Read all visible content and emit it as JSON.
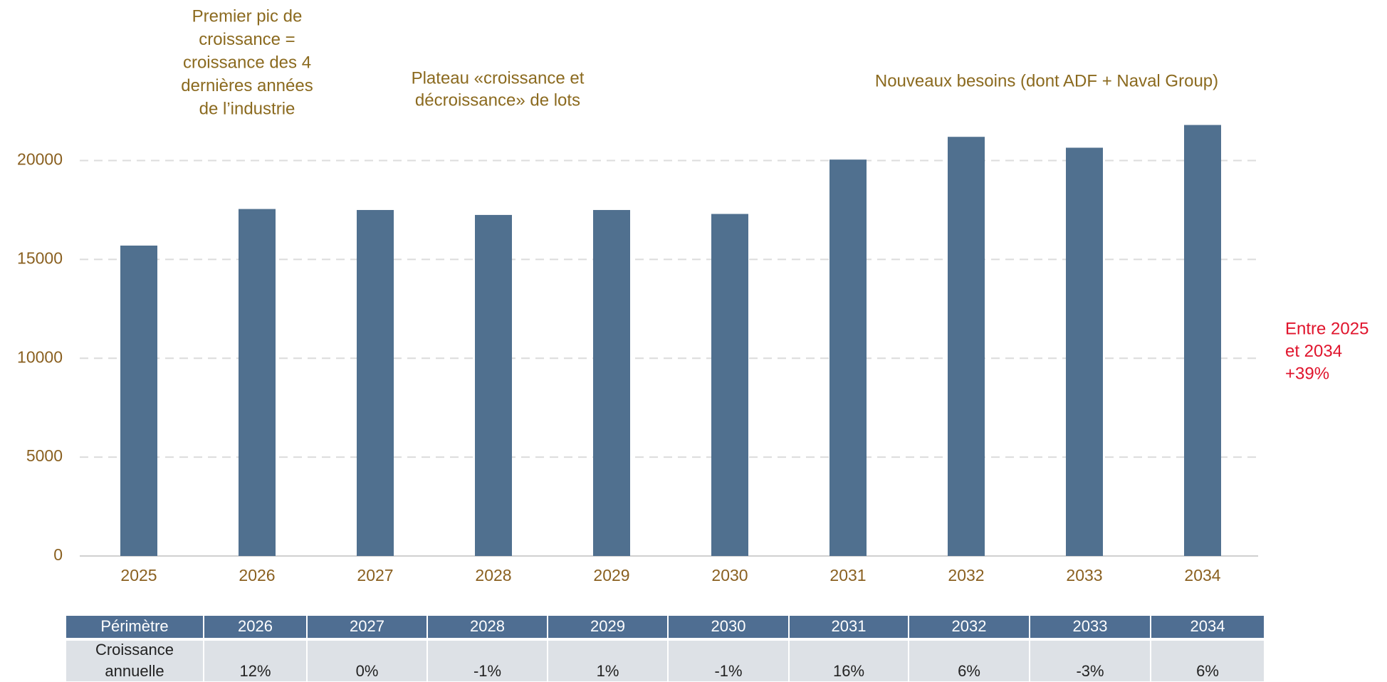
{
  "chart_data": {
    "type": "bar",
    "categories": [
      "2025",
      "2026",
      "2027",
      "2028",
      "2029",
      "2030",
      "2031",
      "2032",
      "2033",
      "2034"
    ],
    "values": [
      15700,
      17550,
      17500,
      17250,
      17500,
      17300,
      20050,
      21200,
      20650,
      21800
    ],
    "color": "#50708f",
    "ylim": [
      0,
      22000
    ],
    "yticks": [
      0,
      5000,
      10000,
      15000,
      20000
    ],
    "grid": true,
    "annotations": [
      {
        "lines": [
          "Premier pic de",
          "croissance =",
          "croissance des 4",
          "dernières années",
          "de l’industrie"
        ]
      },
      {
        "lines": [
          "Plateau «croissance et",
          "décroissance» de lots"
        ]
      },
      {
        "lines": [
          "Nouveaux besoins (dont ADF + Naval Group)"
        ]
      },
      {
        "lines": [
          "Entre 2025",
          "et 2034",
          "+39%"
        ]
      }
    ]
  },
  "table": {
    "header": [
      "Périmètre",
      "2026",
      "2027",
      "2028",
      "2029",
      "2030",
      "2031",
      "2032",
      "2033",
      "2034"
    ],
    "row_label": [
      "Croissance",
      "annuelle"
    ],
    "row": [
      "12%",
      "0%",
      "-1%",
      "1%",
      "-1%",
      "16%",
      "6%",
      "-3%",
      "6%"
    ]
  }
}
